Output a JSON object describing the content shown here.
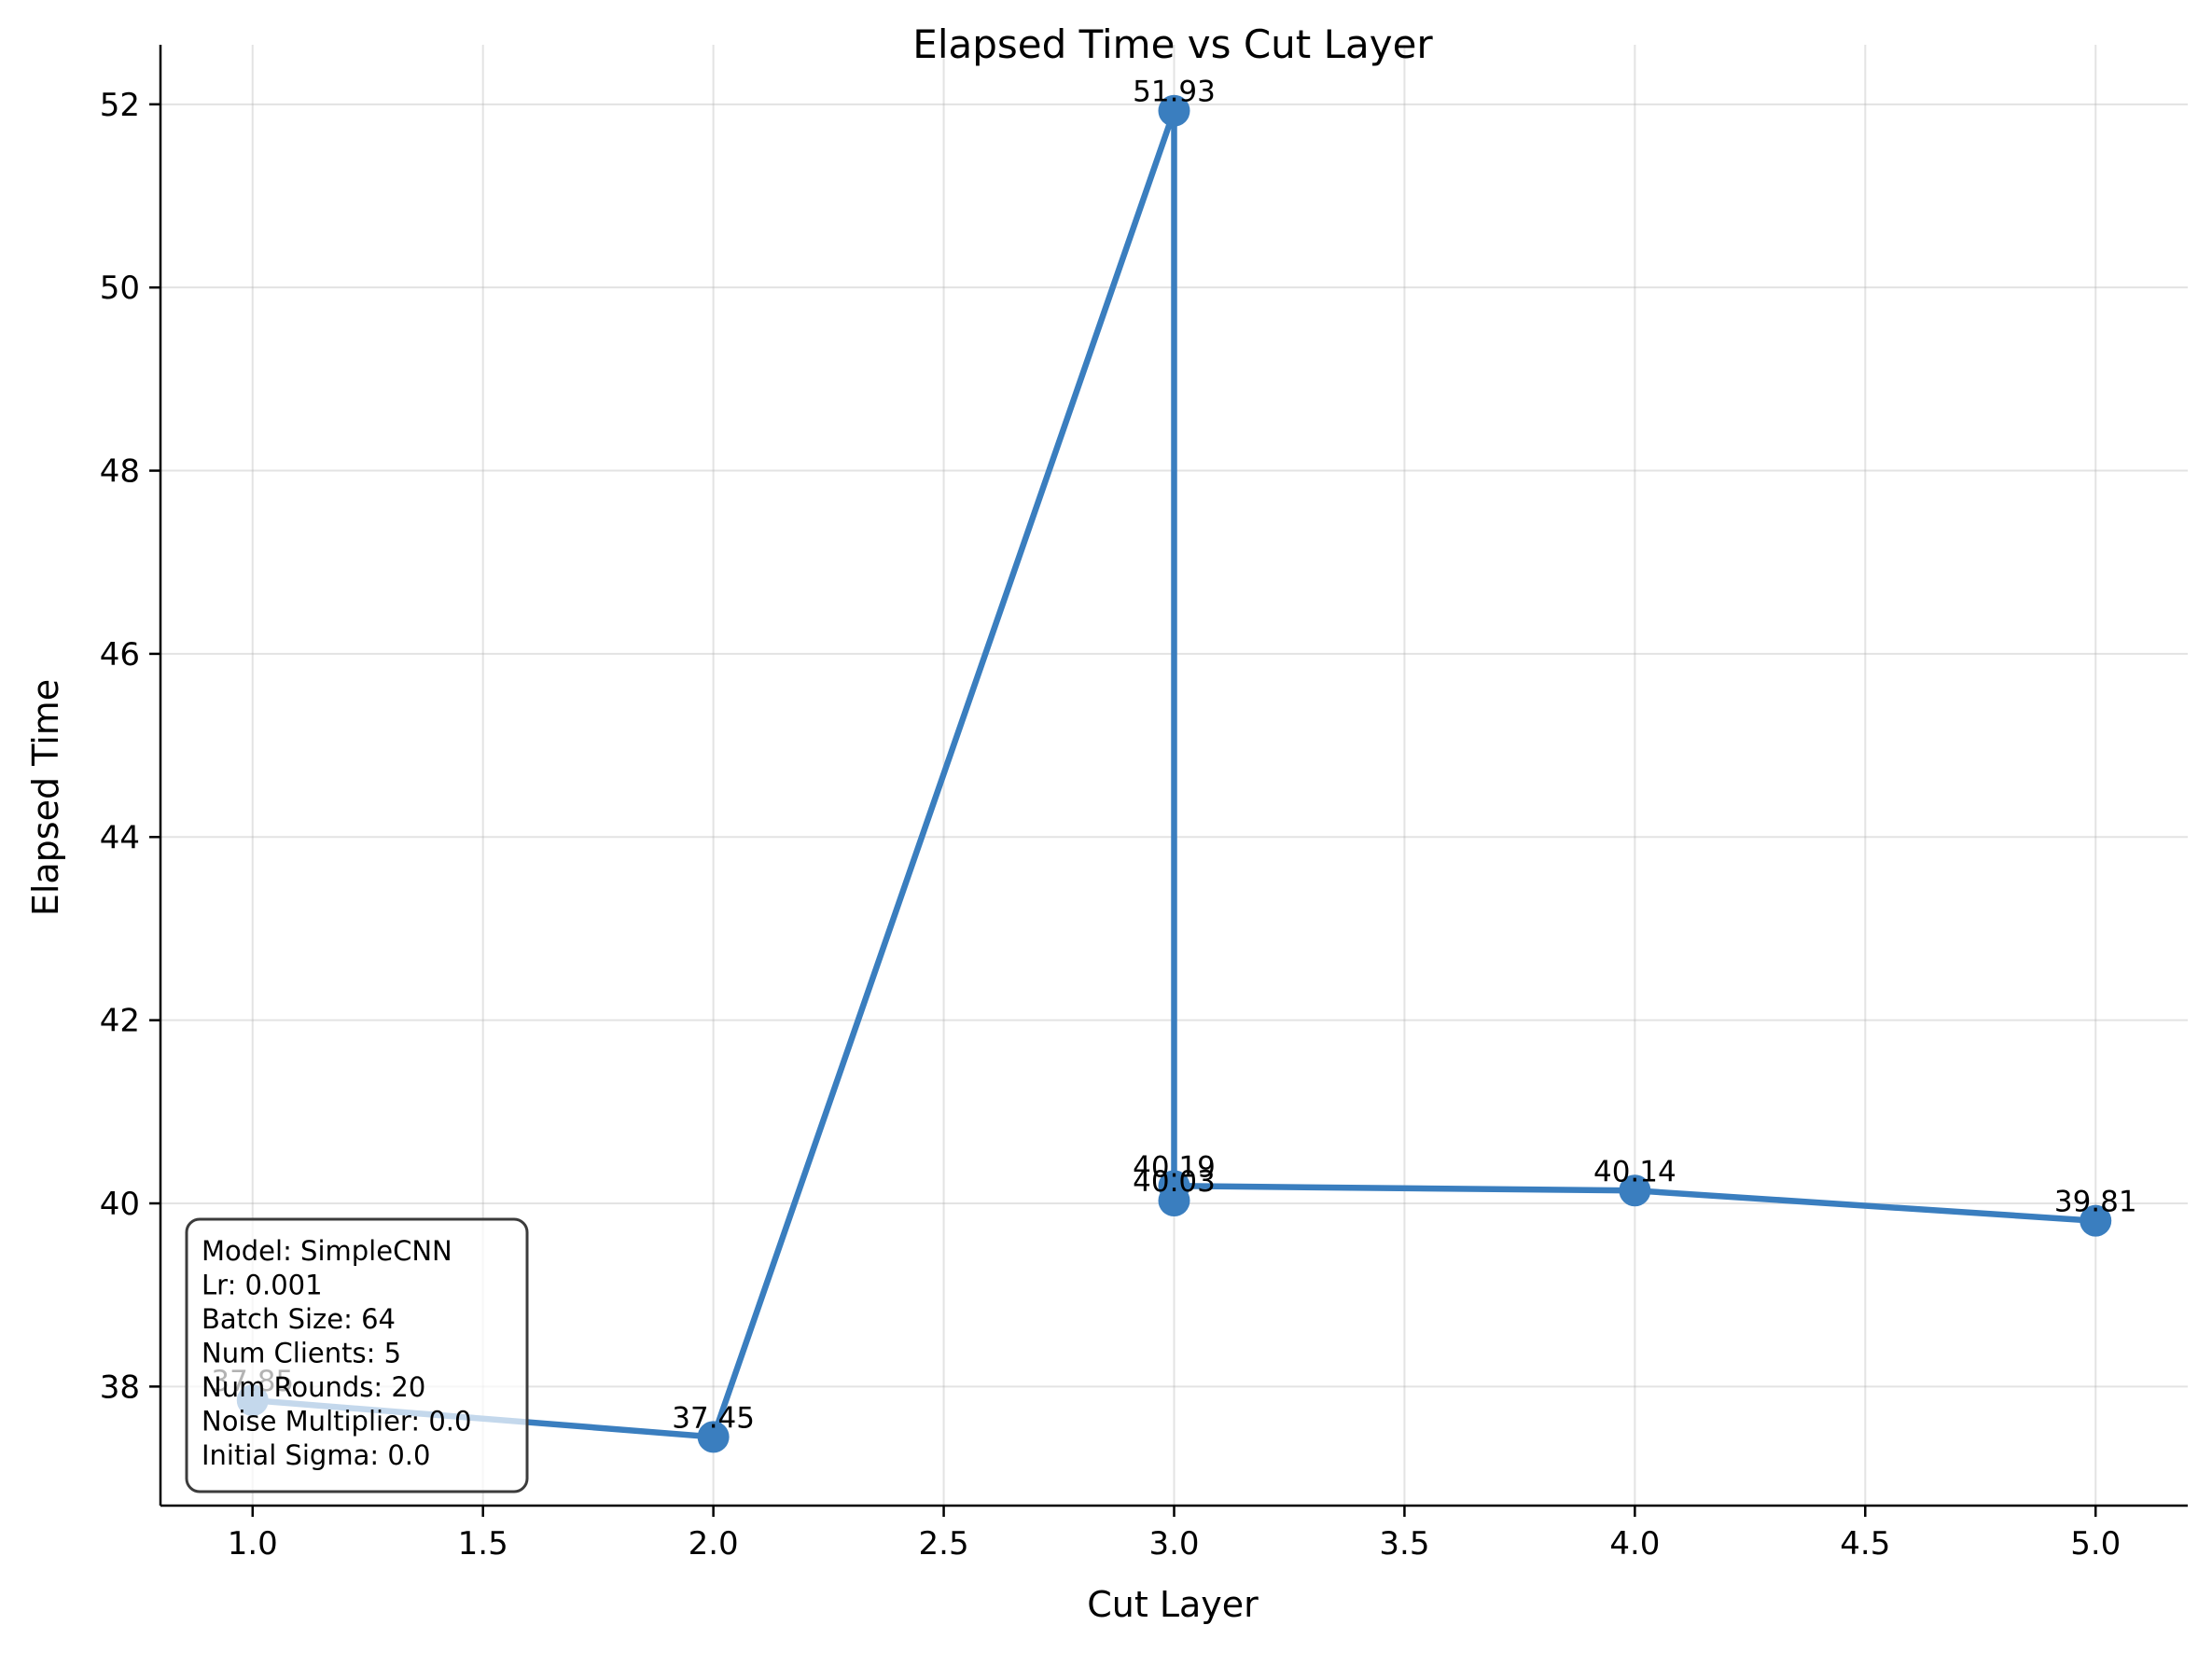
{
  "chart_data": {
    "type": "line",
    "title": "Elapsed Time vs Cut Layer",
    "xlabel": "Cut Layer",
    "ylabel": "Elapsed Time",
    "xlim": [
      0.8,
      5.2
    ],
    "ylim": [
      36.7,
      52.65
    ],
    "x_ticks": [
      1.0,
      1.5,
      2.0,
      2.5,
      3.0,
      3.5,
      4.0,
      4.5,
      5.0
    ],
    "x_tick_labels": [
      "1.0",
      "1.5",
      "2.0",
      "2.5",
      "3.0",
      "3.5",
      "4.0",
      "4.5",
      "5.0"
    ],
    "y_ticks": [
      38,
      40,
      42,
      44,
      46,
      48,
      50,
      52
    ],
    "y_tick_labels": [
      "38",
      "40",
      "42",
      "44",
      "46",
      "48",
      "50",
      "52"
    ],
    "grid": true,
    "series": [
      {
        "name": "Elapsed Time",
        "color": "#3a7ebf",
        "points": [
          {
            "x": 1.0,
            "y": 37.85,
            "label": "37.85"
          },
          {
            "x": 2.0,
            "y": 37.45,
            "label": "37.45"
          },
          {
            "x": 3.0,
            "y": 51.93,
            "label": "51.93"
          },
          {
            "x": 3.0,
            "y": 40.03,
            "label": "40.03"
          },
          {
            "x": 3.0,
            "y": 40.19,
            "label": "40.19"
          },
          {
            "x": 4.0,
            "y": 40.14,
            "label": "40.14"
          },
          {
            "x": 5.0,
            "y": 39.81,
            "label": "39.81"
          }
        ]
      }
    ],
    "info_box": {
      "lines": [
        "Model: SimpleCNN",
        "Lr: 0.001",
        "Batch Size: 64",
        "Num Clients: 5",
        "Num Rounds: 20",
        "Noise Multiplier: 0.0",
        "Initial Sigma: 0.0"
      ],
      "position": "bottom-left"
    }
  }
}
